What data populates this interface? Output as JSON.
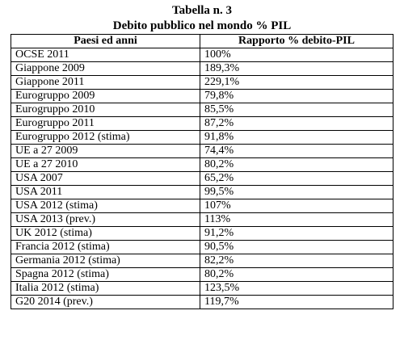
{
  "document": {
    "title": "Tabella n. 3",
    "subtitle": "Debito pubblico nel mondo % PIL"
  },
  "table": {
    "headers": [
      "Paesi ed anni",
      "Rapporto % debito-PIL"
    ],
    "rows": [
      [
        "OCSE 2011",
        "100%"
      ],
      [
        "Giappone 2009",
        "189,3%"
      ],
      [
        "Giappone 2011",
        "229,1%"
      ],
      [
        "Eurogruppo 2009",
        "79,8%"
      ],
      [
        "Eurogruppo 2010",
        "85,5%"
      ],
      [
        "Eurogruppo 2011",
        "87,2%"
      ],
      [
        "Eurogruppo 2012 (stima)",
        "91,8%"
      ],
      [
        "UE a 27 2009",
        "74,4%"
      ],
      [
        "UE a 27  2010",
        "80,2%"
      ],
      [
        "USA 2007",
        "65,2%"
      ],
      [
        "USA 2011",
        "99,5%"
      ],
      [
        "USA 2012 (stima)",
        "107%"
      ],
      [
        "USA 2013 (prev.)",
        "113%"
      ],
      [
        "UK 2012 (stima)",
        "91,2%"
      ],
      [
        "Francia 2012 (stima)",
        "90,5%"
      ],
      [
        "Germania 2012 (stima)",
        "82,2%"
      ],
      [
        "Spagna 2012 (stima)",
        "80,2%"
      ],
      [
        "Italia 2012 (stima)",
        "123,5%"
      ],
      [
        "G20 2014 (prev.)",
        "119,7%"
      ]
    ]
  }
}
